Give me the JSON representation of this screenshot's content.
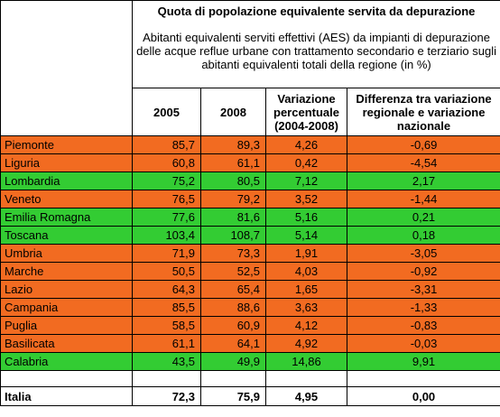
{
  "header": {
    "title": "Quota di popolazione equivalente servita da depurazione",
    "subtitle": "Abitanti equivalenti serviti effettivi (AES) da impianti di depurazione delle acque reflue urbane con trattamento secondario e terziario sugli abitanti equivalenti totali della regione (in %)"
  },
  "table": {
    "columns": [
      "2005",
      "2008",
      "Variazione percentuale (2004-2008)",
      "Differenza tra variazione regionale e variazione nazionale"
    ],
    "rows": [
      {
        "cells": [
          "Piemonte",
          "85,7",
          "89,3",
          "4,26",
          "-0,69"
        ],
        "color": "#f26b21"
      },
      {
        "cells": [
          "Liguria",
          "60,8",
          "61,1",
          "0,42",
          "-4,54"
        ],
        "color": "#f26b21"
      },
      {
        "cells": [
          "Lombardia",
          "75,2",
          "80,5",
          "7,12",
          "2,17"
        ],
        "color": "#33cc33"
      },
      {
        "cells": [
          "Veneto",
          "76,5",
          "79,2",
          "3,52",
          "-1,44"
        ],
        "color": "#f26b21"
      },
      {
        "cells": [
          "Emilia Romagna",
          "77,6",
          "81,6",
          "5,16",
          "0,21"
        ],
        "color": "#33cc33"
      },
      {
        "cells": [
          "Toscana",
          "103,4",
          "108,7",
          "5,14",
          "0,18"
        ],
        "color": "#33cc33"
      },
      {
        "cells": [
          "Umbria",
          "71,9",
          "73,3",
          "1,91",
          "-3,05"
        ],
        "color": "#f26b21"
      },
      {
        "cells": [
          "Marche",
          "50,5",
          "52,5",
          "4,03",
          "-0,92"
        ],
        "color": "#f26b21"
      },
      {
        "cells": [
          "Lazio",
          "64,3",
          "65,4",
          "1,65",
          "-3,31"
        ],
        "color": "#f26b21"
      },
      {
        "cells": [
          "Campania",
          "85,5",
          "88,6",
          "3,63",
          "-1,33"
        ],
        "color": "#f26b21"
      },
      {
        "cells": [
          "Puglia",
          "58,5",
          "60,9",
          "4,12",
          "-0,83"
        ],
        "color": "#f26b21"
      },
      {
        "cells": [
          "Basilicata",
          "61,1",
          "64,1",
          "4,92",
          "-0,03"
        ],
        "color": "#f26b21"
      },
      {
        "cells": [
          "Calabria",
          "43,5",
          "49,9",
          "14,86",
          "9,91"
        ],
        "color": "#33cc33"
      }
    ],
    "total": [
      "Italia",
      "72,3",
      "75,9",
      "4,95",
      "0,00"
    ]
  }
}
